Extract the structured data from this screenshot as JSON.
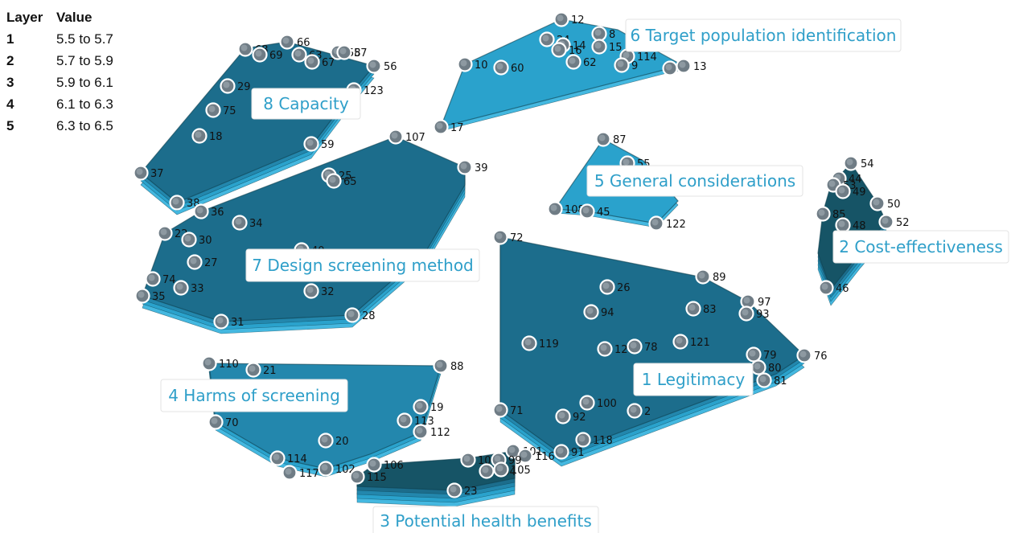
{
  "legend": {
    "header": {
      "layer": "Layer",
      "value": "Value"
    },
    "rows": [
      {
        "layer": "1",
        "value": "5.5 to 5.7"
      },
      {
        "layer": "2",
        "value": "5.7 to 5.9"
      },
      {
        "layer": "3",
        "value": "5.9 to 6.1"
      },
      {
        "layer": "4",
        "value": "6.1 to 6.3"
      },
      {
        "layer": "5",
        "value": "6.3 to 6.5"
      }
    ]
  },
  "colors": {
    "layer_1": "#44b8e0",
    "layer_2": "#2aa2cc",
    "layer_3": "#2387ad",
    "layer_4": "#1c6d8c",
    "layer_5": "#165466",
    "point_fill": "#6f7c85",
    "point_stroke": "#ffffff",
    "cluster_label_text": "#2f9fc9"
  },
  "clusters": [
    {
      "id": "c8",
      "label": "8 Capacity",
      "layers": 4
    },
    {
      "id": "c6",
      "label": "6 Target population identification",
      "layers": 2
    },
    {
      "id": "c7",
      "label": "7 Design screening method",
      "layers": 4
    },
    {
      "id": "c5",
      "label": "5 General considerations",
      "layers": 2
    },
    {
      "id": "c2",
      "label": "2 Cost-effectiveness",
      "layers": 5
    },
    {
      "id": "c1",
      "label": "1 Legitimacy",
      "layers": 4
    },
    {
      "id": "c4",
      "label": "4 Harms of screening",
      "layers": 3
    },
    {
      "id": "c3",
      "label": "3 Potential health benefits",
      "layers": 5
    }
  ],
  "points": [
    "68",
    "69",
    "66",
    "63",
    "67",
    "58",
    "57",
    "56",
    "29",
    "123",
    "75",
    "18",
    "59",
    "37",
    "38",
    "12",
    "24",
    "14",
    "16",
    "8",
    "15",
    "114",
    "9",
    "62",
    "10",
    "60",
    "6",
    "13",
    "17",
    "107",
    "39",
    "25",
    "65",
    "36",
    "34",
    "22",
    "30",
    "27",
    "40",
    "74",
    "33",
    "35",
    "32",
    "28",
    "31",
    "87",
    "55",
    "108",
    "45",
    "122",
    "54",
    "44",
    "53",
    "49",
    "50",
    "85",
    "48",
    "52",
    "46",
    "72",
    "89",
    "26",
    "94",
    "83",
    "97",
    "93",
    "119",
    "120",
    "78",
    "121",
    "79",
    "80",
    "81",
    "76",
    "100",
    "92",
    "2",
    "118",
    "91",
    "71",
    "110",
    "21",
    "88",
    "19",
    "113",
    "112",
    "70",
    "20",
    "114",
    "117",
    "102",
    "106",
    "115",
    "101",
    "116",
    "103",
    "99",
    "104",
    "105",
    "23"
  ]
}
